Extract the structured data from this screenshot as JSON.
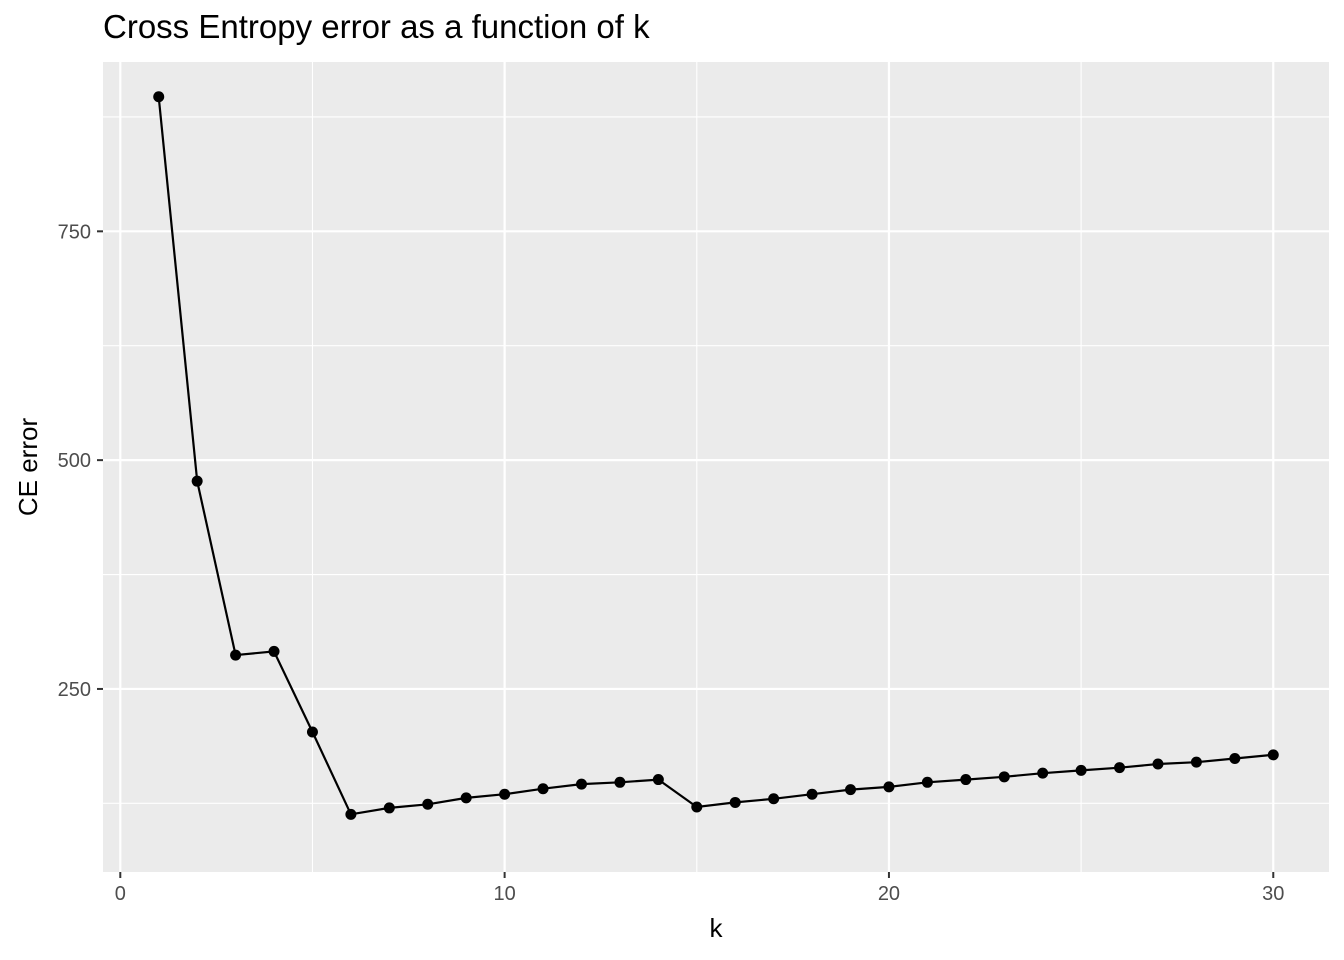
{
  "chart_data": {
    "type": "line",
    "title": "Cross Entropy error as a function of k",
    "xlabel": "k",
    "ylabel": "CE error",
    "xlim": [
      -0.45,
      31.45
    ],
    "ylim": [
      50,
      935
    ],
    "x_major_ticks": [
      0,
      10,
      20,
      30
    ],
    "x_minor_ticks": [
      5,
      15,
      25
    ],
    "y_major_ticks": [
      250,
      500,
      750
    ],
    "y_minor_ticks": [
      125,
      375,
      625,
      875
    ],
    "grid": true,
    "background": "#ebebeb",
    "gridline_color": "#ffffff",
    "line_color": "#000000",
    "markers": true,
    "series": [
      {
        "x": [
          1,
          2,
          3,
          4,
          5,
          6,
          7,
          8,
          9,
          10,
          11,
          12,
          13,
          14,
          15,
          16,
          17,
          18,
          19,
          20,
          21,
          22,
          23,
          24,
          25,
          26,
          27,
          28,
          29,
          30
        ],
        "y": [
          897,
          477,
          287,
          291,
          203,
          113,
          120,
          124,
          131,
          135,
          141,
          146,
          148,
          151,
          121,
          126,
          130,
          135,
          140,
          143,
          148,
          151,
          154,
          158,
          161,
          164,
          168,
          170,
          174,
          178
        ]
      }
    ]
  }
}
